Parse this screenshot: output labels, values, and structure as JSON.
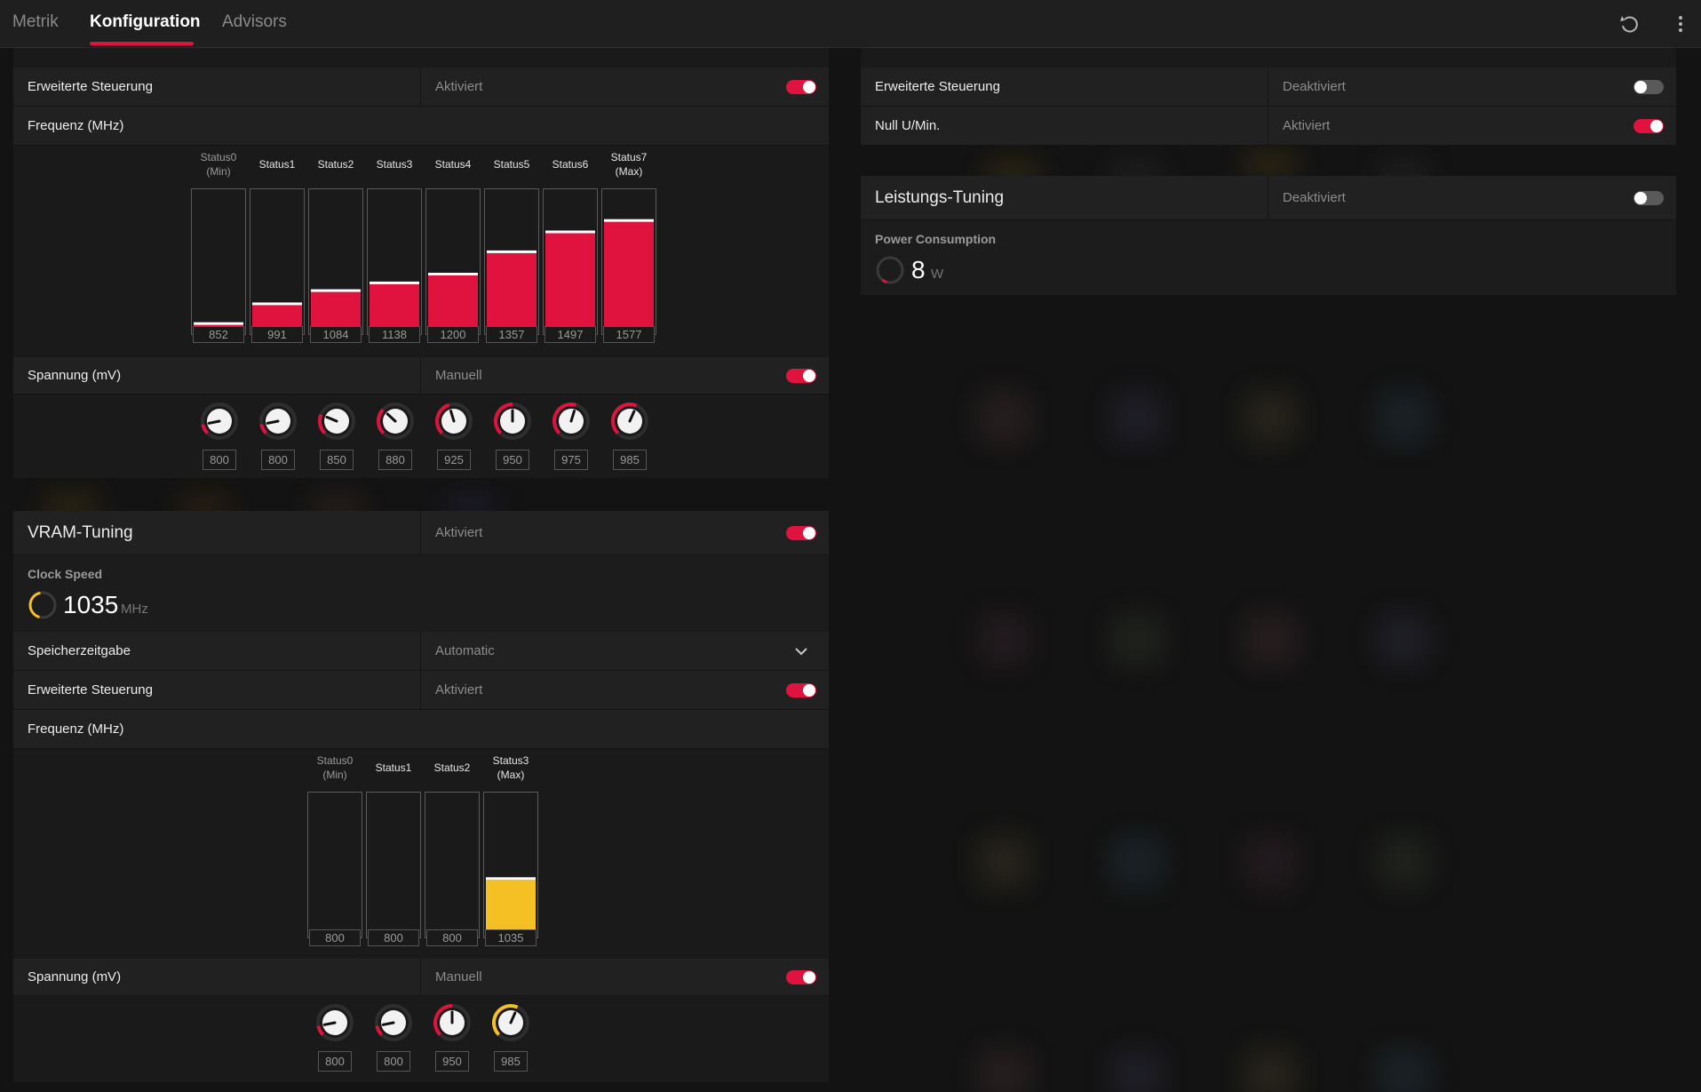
{
  "tabs": [
    {
      "label": "Metrik",
      "active": false
    },
    {
      "label": "Konfiguration",
      "active": true
    },
    {
      "label": "Advisors",
      "active": false
    }
  ],
  "toolbar": {
    "reset_icon": "reset-icon",
    "menu_icon": "more-vertical-icon"
  },
  "gpu": {
    "advanced_control": {
      "label": "Erweiterte Steuerung",
      "value": "Aktiviert",
      "enabled": true
    },
    "frequency": {
      "label": "Frequenz (MHz)",
      "accent": "#e0133f",
      "range": [
        800,
        1800
      ],
      "states": [
        {
          "label": "Status0",
          "sub": "(Min)",
          "value": "852"
        },
        {
          "label": "Status1",
          "sub": "",
          "value": "991"
        },
        {
          "label": "Status2",
          "sub": "",
          "value": "1084"
        },
        {
          "label": "Status3",
          "sub": "",
          "value": "1138"
        },
        {
          "label": "Status4",
          "sub": "",
          "value": "1200"
        },
        {
          "label": "Status5",
          "sub": "",
          "value": "1357"
        },
        {
          "label": "Status6",
          "sub": "",
          "value": "1497"
        },
        {
          "label": "Status7",
          "sub": "(Max)",
          "value": "1577"
        }
      ]
    },
    "voltage": {
      "label": "Spannung (mV)",
      "value": "Manuell",
      "enabled": true,
      "range": [
        750,
        1150
      ],
      "knobs": [
        "800",
        "800",
        "850",
        "880",
        "925",
        "950",
        "975",
        "985"
      ]
    }
  },
  "vram": {
    "header": {
      "label": "VRAM-Tuning",
      "value": "Aktiviert",
      "enabled": true
    },
    "clock": {
      "title": "Clock Speed",
      "value": "1035",
      "unit": "MHz",
      "accent": "#f5c024",
      "fraction": 0.45
    },
    "timing": {
      "label": "Speicherzeitgabe",
      "value": "Automatic"
    },
    "advanced_control": {
      "label": "Erweiterte Steuerung",
      "value": "Aktiviert",
      "enabled": true
    },
    "frequency": {
      "label": "Frequenz (MHz)",
      "accent": "#f5c024",
      "range": [
        800,
        1400
      ],
      "states": [
        {
          "label": "Status0",
          "sub": "(Min)",
          "value": "800"
        },
        {
          "label": "Status1",
          "sub": "",
          "value": "800"
        },
        {
          "label": "Status2",
          "sub": "",
          "value": "800"
        },
        {
          "label": "Status3",
          "sub": "(Max)",
          "value": "1035"
        }
      ]
    },
    "voltage": {
      "label": "Spannung (mV)",
      "value": "Manuell",
      "enabled": true,
      "range": [
        750,
        1150
      ],
      "knobs": [
        "800",
        "800",
        "950",
        "985"
      ]
    }
  },
  "fan": {
    "advanced_control": {
      "label": "Erweiterte Steuerung",
      "value": "Deaktiviert",
      "enabled": false
    },
    "zero_rpm": {
      "label": "Null U/Min.",
      "value": "Aktiviert",
      "enabled": true
    }
  },
  "power": {
    "header": {
      "label": "Leistungs-Tuning",
      "value": "Deaktiviert",
      "enabled": false
    },
    "consumption": {
      "title": "Power Consumption",
      "value": "8",
      "unit": "W",
      "accent": "#e0133f",
      "fraction": 0.04
    }
  }
}
